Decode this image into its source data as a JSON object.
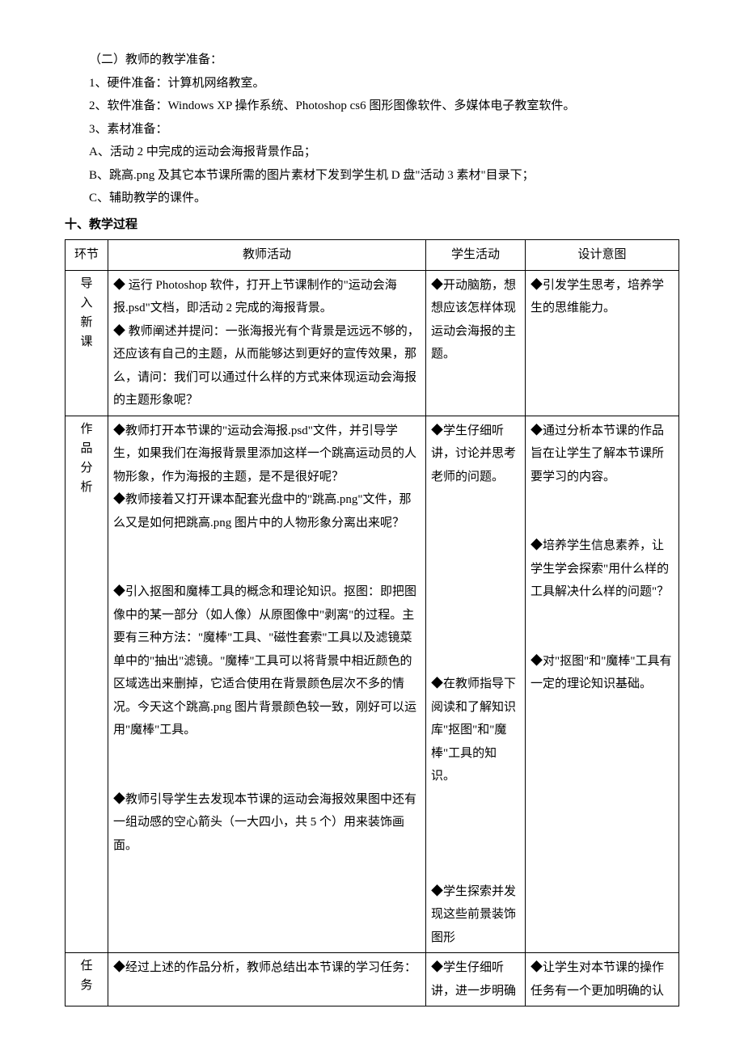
{
  "intro": {
    "line1": "（二）教师的教学准备：",
    "line2": "1、硬件准备：计算机网络教室。",
    "line3": "2、软件准备：Windows XP 操作系统、Photoshop cs6 图形图像软件、多媒体电子教室软件。",
    "line4": "3、素材准备：",
    "line5": "A、活动 2 中完成的运动会海报背景作品；",
    "line6": "B、跳高.png 及其它本节课所需的图片素材下发到学生机 D 盘\"活动 3 素材\"目录下；",
    "line7": "C、辅助教学的课件。"
  },
  "heading": "十、教学过程",
  "table": {
    "headers": {
      "phase": "环节",
      "teacher": "教师活动",
      "student": "学生活动",
      "intent": "设计意图"
    },
    "rows": {
      "r1": {
        "phase": "导入新课",
        "teacher": "◆ 运行 Photoshop 软件，打开上节课制作的\"运动会海报.psd\"文档，即活动 2 完成的海报背景。\n◆ 教师阐述并提问：一张海报光有个背景是远远不够的，还应该有自己的主题，从而能够达到更好的宣传效果，那么，请问：我们可以通过什么样的方式来体现运动会海报的主题形象呢？",
        "student": "◆开动脑筋，想想应该怎样体现运动会海报的主题。",
        "intent": "◆引发学生思考，培养学生的思维能力。"
      },
      "r2": {
        "phase": "作品分析",
        "teacher": "◆教师打开本节课的\"运动会海报.psd\"文件，并引导学生，如果我们在海报背景里添加这样一个跳高运动员的人物形象，作为海报的主题，是不是很好呢？\n◆教师接着又打开课本配套光盘中的\"跳高.png\"文件，那么又是如何把跳高.png 图片中的人物形象分离出来呢？\n\n◆引入抠图和魔棒工具的概念和理论知识。抠图：即把图像中的某一部分（如人像）从原图像中\"剥离\"的过程。主要有三种方法：\"魔棒\"工具、\"磁性套索\"工具以及滤镜菜单中的\"抽出\"滤镜。\"魔棒\"工具可以将背景中相近颜色的区域选出来删掉，它适合使用在背景颜色层次不多的情况。今天这个跳高.png 图片背景颜色较一致，刚好可以运用\"魔棒\"工具。\n\n◆教师引导学生去发现本节课的运动会海报效果图中还有一组动感的空心箭头（一大四小，共 5 个）用来装饰画面。",
        "student": "◆学生仔细听讲，讨论并思考老师的问题。\n\n\n\n\n◆在教师指导下阅读和了解知识库\"抠图\"和\"魔棒\"工具的知识。\n\n\n◆学生探索并发现这些前景装饰图形",
        "intent": "◆通过分析本节课的作品旨在让学生了解本节课所要学习的内容。\n\n◆培养学生信息素养，让学生学会探索\"用什么样的工具解决什么样的问题\"？\n\n◆对\"抠图\"和\"魔棒\"工具有一定的理论知识基础。"
      },
      "r3": {
        "phase": "任务",
        "teacher": "◆经过上述的作品分析，教师总结出本节课的学习任务：",
        "student": "◆学生仔细听讲，进一步明确",
        "intent": "◆让学生对本节课的操作任务有一个更加明确的认"
      }
    }
  }
}
